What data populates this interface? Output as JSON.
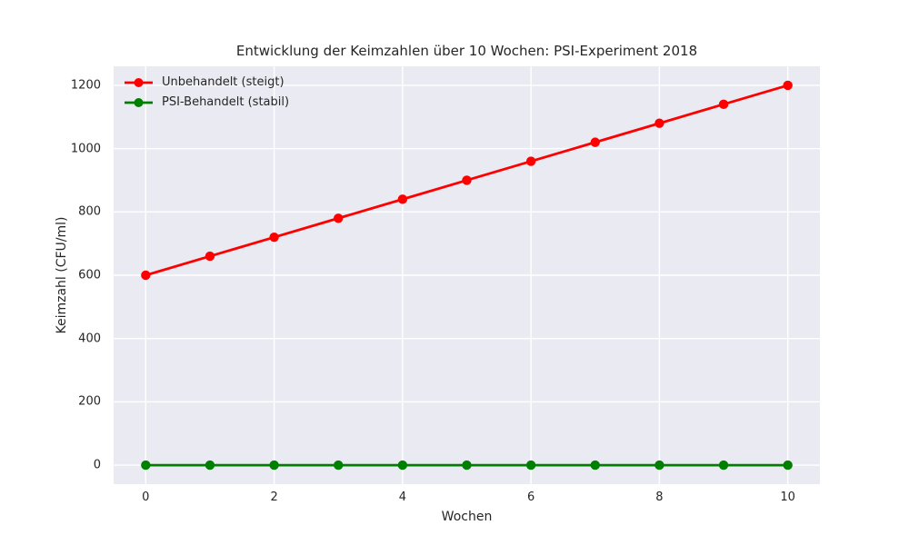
{
  "chart_data": {
    "type": "line",
    "title": "Entwicklung der Keimzahlen über 10 Wochen: PSI-Experiment 2018",
    "xlabel": "Wochen",
    "ylabel": "Keimzahl (CFU/ml)",
    "x": [
      0,
      1,
      2,
      3,
      4,
      5,
      6,
      7,
      8,
      9,
      10
    ],
    "series": [
      {
        "name": "Unbehandelt (steigt)",
        "color": "#ff0000",
        "values": [
          600,
          660,
          720,
          780,
          840,
          900,
          960,
          1020,
          1080,
          1140,
          1200
        ]
      },
      {
        "name": "PSI-Behandelt (stabil)",
        "color": "#008000",
        "values": [
          0,
          0,
          0,
          0,
          0,
          0,
          0,
          0,
          0,
          0,
          0
        ]
      }
    ],
    "xlim": [
      -0.5,
      10.5
    ],
    "ylim": [
      -60,
      1260
    ],
    "xticks": [
      0,
      2,
      4,
      6,
      8,
      10
    ],
    "yticks": [
      0,
      200,
      400,
      600,
      800,
      1000,
      1200
    ],
    "grid": true,
    "legend_position": "upper-left",
    "marker": "circle",
    "plot_bg_color": "#eaeaf2",
    "grid_color": "#ffffff",
    "text_color": "#262626"
  }
}
